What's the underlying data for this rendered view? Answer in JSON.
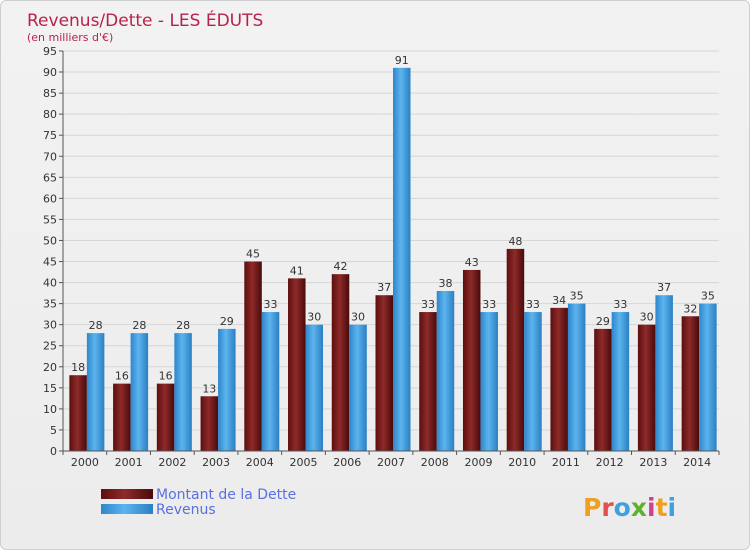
{
  "chart_data": {
    "type": "bar",
    "title": "Revenus/Dette - LES ÉDUTS",
    "subtitle": "(en milliers d'€)",
    "categories": [
      "2000",
      "2001",
      "2002",
      "2003",
      "2004",
      "2005",
      "2006",
      "2007",
      "2008",
      "2009",
      "2010",
      "2011",
      "2012",
      "2013",
      "2014"
    ],
    "series": [
      {
        "name": "Montant de la Dette",
        "color": "#7a1b1b",
        "values": [
          18,
          16,
          16,
          13,
          45,
          41,
          42,
          37,
          33,
          43,
          48,
          34,
          29,
          30,
          32
        ]
      },
      {
        "name": "Revenus",
        "color": "#3a9ee0",
        "values": [
          28,
          28,
          28,
          29,
          33,
          30,
          30,
          91,
          38,
          33,
          33,
          35,
          33,
          37,
          35
        ]
      }
    ],
    "ylim": [
      0,
      95
    ],
    "ytick_step": 5,
    "grid": true,
    "legend_position": "bottom-left"
  },
  "brand": {
    "logo_text": "Proxiti",
    "logo_colors": [
      "#f0a020",
      "#e05050",
      "#3fa0e0",
      "#60b030",
      "#d04090",
      "#f0a020",
      "#3fa0e0"
    ]
  }
}
